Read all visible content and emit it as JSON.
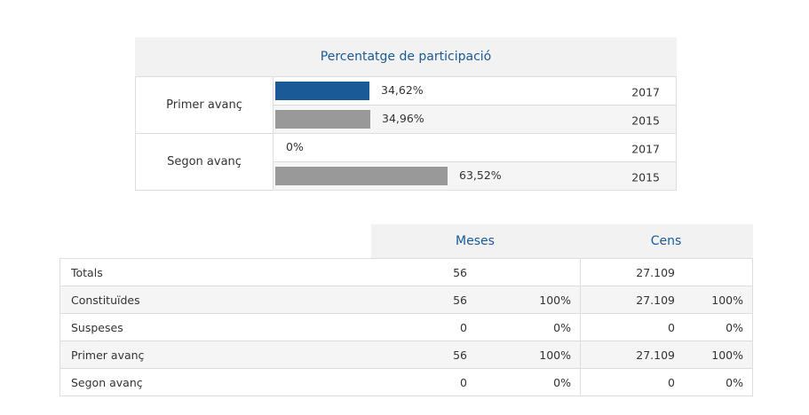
{
  "participation": {
    "title": "Percentatge de participació",
    "groups": [
      {
        "label": "Primer avanç",
        "rows": [
          {
            "value": 34.62,
            "value_label": "34,62%",
            "year": "2017",
            "color": "#1a5a96"
          },
          {
            "value": 34.96,
            "value_label": "34,96%",
            "year": "2015",
            "color": "#999999"
          }
        ]
      },
      {
        "label": "Segon avanç",
        "rows": [
          {
            "value": 0,
            "value_label": "0%",
            "year": "2017",
            "color": "#1a5a96"
          },
          {
            "value": 63.52,
            "value_label": "63,52%",
            "year": "2015",
            "color": "#999999"
          }
        ]
      }
    ]
  },
  "summary": {
    "headers": {
      "meses": "Meses",
      "cens": "Cens"
    },
    "rows": [
      {
        "name": "Totals",
        "meses": "56",
        "meses_pct": "",
        "cens": "27.109",
        "cens_pct": ""
      },
      {
        "name": "Constituïdes",
        "meses": "56",
        "meses_pct": "100%",
        "cens": "27.109",
        "cens_pct": "100%"
      },
      {
        "name": "Suspeses",
        "meses": "0",
        "meses_pct": "0%",
        "cens": "0",
        "cens_pct": "0%"
      },
      {
        "name": "Primer avanç",
        "meses": "56",
        "meses_pct": "100%",
        "cens": "27.109",
        "cens_pct": "100%"
      },
      {
        "name": "Segon avanç",
        "meses": "0",
        "meses_pct": "0%",
        "cens": "0",
        "cens_pct": "0%"
      }
    ]
  }
}
